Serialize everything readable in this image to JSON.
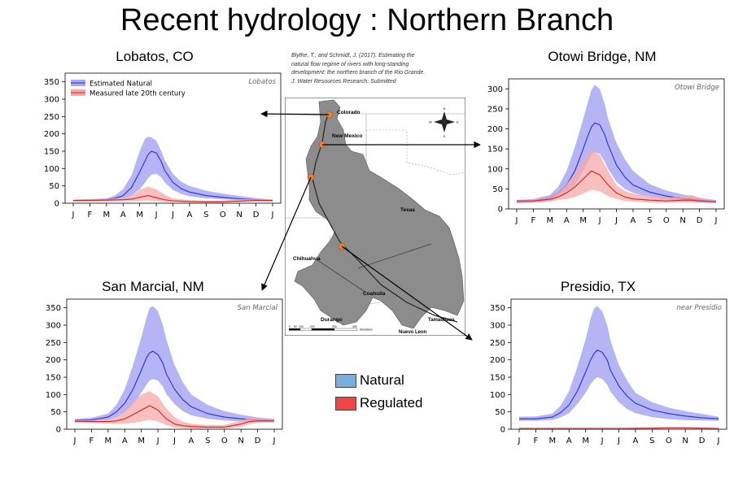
{
  "page": {
    "title": "Recent hydrology : Northern Branch"
  },
  "citation": [
    "Blythe, T., and Schmidt, J.  (2017). Estimating the",
    "natural flow regime of rivers with long-standing",
    "development: the northern branch of the Rio Grande.",
    "J. Water Resources Research. Submitted"
  ],
  "map": {
    "labels": {
      "colorado": "Colorado",
      "new_mexico": "New Mexico",
      "texas": "Texas",
      "chihuahua": "Chihuahua",
      "coahuila": "Coahuila",
      "durango": "Durango",
      "tamaulipas": "Tamaulipas",
      "nuevo_leon": "Nuevo Leon"
    },
    "compass": {
      "n": "N",
      "s": "S",
      "e": "E",
      "w": "W"
    },
    "scale": {
      "ticks": [
        "0",
        "50",
        "100",
        "200",
        "300",
        "400"
      ],
      "unit": "Kilometers"
    },
    "gage_color": "#e8823a",
    "basin_color": "#8c8c8c"
  },
  "bottom_legend": {
    "natural_label": "Natural",
    "natural_color": "#7aaedc",
    "regulated_label": "Regulated",
    "regulated_color": "#f04545"
  },
  "colors": {
    "natural_line": "#2b2bd6",
    "natural_band": "#a8a8f4",
    "regulated_line": "#d42222",
    "regulated_band": "#f7a8a8"
  },
  "chart_data": [
    {
      "id": "lobatos",
      "station_title": "Lobatos, CO",
      "type": "area",
      "inset_label": "Lobatos",
      "legend": [
        "Estimated Natural",
        "Measured late 20th century"
      ],
      "categories": [
        "J",
        "F",
        "M",
        "A",
        "M",
        "J",
        "J",
        "A",
        "S",
        "O",
        "N",
        "D",
        "J"
      ],
      "ylim": [
        0,
        375
      ],
      "yticks": [
        0,
        50,
        100,
        150,
        200,
        250,
        300,
        350
      ],
      "series": [
        {
          "name": "Estimated Natural",
          "x": [
            1,
            2,
            3,
            3.5,
            4,
            4.5,
            5,
            5.3,
            5.5,
            5.7,
            6,
            6.3,
            6.5,
            7,
            7.5,
            8,
            9,
            10,
            11,
            12,
            13
          ],
          "mean": [
            8,
            8,
            10,
            14,
            22,
            45,
            90,
            120,
            140,
            150,
            145,
            120,
            95,
            60,
            42,
            32,
            22,
            17,
            13,
            10,
            8
          ],
          "upper": [
            10,
            11,
            14,
            22,
            40,
            80,
            150,
            185,
            192,
            190,
            180,
            150,
            125,
            85,
            62,
            50,
            36,
            28,
            21,
            15,
            10
          ],
          "lower": [
            6,
            6,
            7,
            9,
            12,
            22,
            40,
            58,
            72,
            82,
            85,
            75,
            60,
            38,
            27,
            20,
            14,
            11,
            9,
            7,
            6
          ]
        },
        {
          "name": "Measured late 20th century",
          "x": [
            1,
            3,
            4,
            4.5,
            5,
            5.5,
            6,
            6.5,
            7,
            8,
            9,
            10,
            11,
            12,
            13
          ],
          "mean": [
            8,
            9,
            10,
            12,
            17,
            22,
            16,
            10,
            7,
            5,
            4,
            4,
            6,
            8,
            8
          ],
          "upper": [
            11,
            12,
            16,
            22,
            38,
            48,
            40,
            25,
            14,
            9,
            7,
            8,
            12,
            12,
            11
          ],
          "lower": [
            5,
            5,
            6,
            6,
            7,
            8,
            6,
            4,
            3,
            2,
            2,
            2,
            3,
            5,
            5
          ]
        }
      ]
    },
    {
      "id": "otowi",
      "station_title": "Otowi Bridge, NM",
      "type": "area",
      "inset_label": "Otowi Bridge",
      "categories": [
        "J",
        "F",
        "M",
        "A",
        "M",
        "J",
        "J",
        "A",
        "S",
        "O",
        "N",
        "D",
        "J"
      ],
      "ylim": [
        0,
        325
      ],
      "yticks": [
        0,
        50,
        100,
        150,
        200,
        250,
        300
      ],
      "series": [
        {
          "name": "Natural",
          "x": [
            1,
            2,
            3,
            3.5,
            4,
            4.5,
            5,
            5.3,
            5.5,
            5.7,
            6,
            6.3,
            6.5,
            7,
            7.5,
            8,
            9,
            10,
            11,
            12,
            13
          ],
          "mean": [
            18,
            20,
            28,
            40,
            60,
            95,
            150,
            185,
            205,
            215,
            210,
            185,
            160,
            110,
            80,
            60,
            42,
            32,
            26,
            22,
            18
          ],
          "upper": [
            22,
            25,
            35,
            55,
            95,
            155,
            225,
            270,
            298,
            310,
            300,
            262,
            225,
            165,
            125,
            95,
            62,
            46,
            36,
            28,
            22
          ],
          "lower": [
            14,
            15,
            20,
            28,
            38,
            60,
            95,
            118,
            135,
            142,
            138,
            118,
            100,
            68,
            50,
            40,
            30,
            24,
            19,
            16,
            14
          ]
        },
        {
          "name": "Regulated",
          "x": [
            1,
            2,
            3,
            3.5,
            4,
            4.5,
            5,
            5.5,
            6,
            6.5,
            7,
            7.5,
            8,
            9,
            10,
            11,
            11.5,
            12,
            13
          ],
          "mean": [
            20,
            20,
            24,
            30,
            40,
            55,
            75,
            95,
            85,
            60,
            40,
            30,
            25,
            22,
            20,
            22,
            22,
            20,
            18
          ],
          "upper": [
            23,
            24,
            30,
            42,
            62,
            90,
            120,
            148,
            135,
            95,
            60,
            45,
            38,
            32,
            28,
            32,
            35,
            28,
            22
          ],
          "lower": [
            16,
            16,
            18,
            22,
            25,
            30,
            38,
            48,
            44,
            32,
            25,
            20,
            18,
            16,
            15,
            16,
            16,
            15,
            14
          ]
        }
      ]
    },
    {
      "id": "san_marcial",
      "station_title": "San Marcial, NM",
      "type": "area",
      "inset_label": "San Marcial",
      "categories": [
        "J",
        "F",
        "M",
        "A",
        "M",
        "J",
        "J",
        "A",
        "S",
        "O",
        "N",
        "D",
        "J"
      ],
      "ylim": [
        0,
        375
      ],
      "yticks": [
        0,
        50,
        100,
        150,
        200,
        250,
        300,
        350
      ],
      "series": [
        {
          "name": "Natural",
          "x": [
            1,
            2,
            3,
            3.5,
            4,
            4.5,
            5,
            5.3,
            5.5,
            5.7,
            6,
            6.3,
            6.5,
            7,
            7.5,
            8,
            9,
            10,
            11,
            12,
            13
          ],
          "mean": [
            25,
            27,
            35,
            50,
            75,
            115,
            170,
            205,
            220,
            225,
            215,
            190,
            160,
            115,
            85,
            65,
            45,
            35,
            30,
            27,
            25
          ],
          "upper": [
            30,
            33,
            45,
            70,
            115,
            185,
            265,
            320,
            350,
            355,
            340,
            300,
            260,
            185,
            135,
            100,
            70,
            52,
            42,
            34,
            30
          ],
          "lower": [
            21,
            22,
            27,
            35,
            48,
            72,
            105,
            128,
            140,
            145,
            140,
            122,
            102,
            72,
            52,
            40,
            30,
            25,
            22,
            21,
            21
          ]
        },
        {
          "name": "Regulated",
          "x": [
            1,
            2,
            3,
            3.5,
            4,
            4.5,
            5,
            5.5,
            6,
            6.5,
            7,
            7.5,
            8,
            9,
            10,
            11,
            11.5,
            12,
            13
          ],
          "mean": [
            23,
            22,
            22,
            24,
            30,
            42,
            55,
            68,
            55,
            30,
            15,
            10,
            8,
            6,
            6,
            15,
            22,
            24,
            24
          ],
          "upper": [
            26,
            26,
            28,
            35,
            52,
            80,
            100,
            110,
            95,
            60,
            35,
            22,
            16,
            12,
            12,
            25,
            33,
            32,
            28
          ],
          "lower": [
            19,
            18,
            17,
            16,
            16,
            18,
            22,
            28,
            22,
            12,
            5,
            3,
            2,
            2,
            2,
            6,
            14,
            18,
            19
          ]
        }
      ]
    },
    {
      "id": "presidio",
      "station_title": "Presidio, TX",
      "type": "area",
      "inset_label": "near Presidio",
      "categories": [
        "J",
        "F",
        "M",
        "A",
        "M",
        "J",
        "J",
        "A",
        "S",
        "O",
        "N",
        "D",
        "J"
      ],
      "ylim": [
        0,
        375
      ],
      "yticks": [
        0,
        50,
        100,
        150,
        200,
        250,
        300,
        350
      ],
      "series": [
        {
          "name": "Natural",
          "x": [
            1,
            2,
            3,
            3.5,
            4,
            4.5,
            5,
            5.3,
            5.5,
            5.7,
            6,
            6.3,
            6.5,
            7,
            7.5,
            8,
            9,
            10,
            11,
            12,
            13
          ],
          "mean": [
            30,
            30,
            35,
            48,
            70,
            110,
            165,
            200,
            218,
            228,
            222,
            200,
            170,
            125,
            95,
            75,
            55,
            45,
            38,
            33,
            30
          ],
          "upper": [
            36,
            37,
            45,
            68,
            110,
            180,
            260,
            320,
            348,
            355,
            340,
            300,
            255,
            185,
            140,
            105,
            78,
            62,
            52,
            44,
            36
          ],
          "lower": [
            24,
            24,
            27,
            34,
            46,
            72,
            105,
            130,
            142,
            150,
            145,
            128,
            108,
            78,
            58,
            46,
            35,
            29,
            26,
            25,
            24
          ]
        },
        {
          "name": "Regulated",
          "x": [
            1,
            3,
            5,
            7,
            9,
            10,
            11,
            12,
            13
          ],
          "mean": [
            2,
            2,
            2,
            2,
            3,
            4,
            4,
            3,
            2
          ],
          "upper": [
            3,
            3,
            3,
            3,
            5,
            6,
            6,
            5,
            3
          ],
          "lower": [
            1,
            1,
            1,
            1,
            1,
            2,
            2,
            1,
            1
          ]
        }
      ]
    }
  ]
}
